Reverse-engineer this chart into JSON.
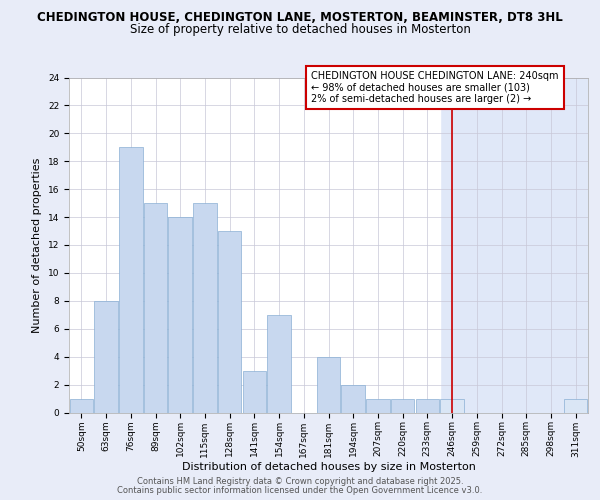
{
  "title_line1": "CHEDINGTON HOUSE, CHEDINGTON LANE, MOSTERTON, BEAMINSTER, DT8 3HL",
  "title_line2": "Size of property relative to detached houses in Mosterton",
  "xlabel": "Distribution of detached houses by size in Mosterton",
  "ylabel": "Number of detached properties",
  "categories": [
    "50sqm",
    "63sqm",
    "76sqm",
    "89sqm",
    "102sqm",
    "115sqm",
    "128sqm",
    "141sqm",
    "154sqm",
    "167sqm",
    "181sqm",
    "194sqm",
    "207sqm",
    "220sqm",
    "233sqm",
    "246sqm",
    "259sqm",
    "272sqm",
    "285sqm",
    "298sqm",
    "311sqm"
  ],
  "values": [
    1,
    8,
    19,
    15,
    14,
    15,
    13,
    3,
    7,
    0,
    4,
    2,
    1,
    1,
    1,
    1,
    0,
    0,
    0,
    0,
    1
  ],
  "bar_color_normal": "#c8d8ef",
  "bar_color_highlight": "#dae6f5",
  "bar_edge_color": "#8aafd4",
  "highlight_from_index": 15,
  "vline_x_index": 15,
  "vline_color": "#cc0000",
  "annotation_text": "CHEDINGTON HOUSE CHEDINGTON LANE: 240sqm\n← 98% of detached houses are smaller (103)\n2% of semi-detached houses are larger (2) →",
  "annotation_box_color": "#ffffff",
  "annotation_box_edge": "#cc0000",
  "ylim": [
    0,
    24
  ],
  "yticks": [
    0,
    2,
    4,
    6,
    8,
    10,
    12,
    14,
    16,
    18,
    20,
    22,
    24
  ],
  "footer_line1": "Contains HM Land Registry data © Crown copyright and database right 2025.",
  "footer_line2": "Contains public sector information licensed under the Open Government Licence v3.0.",
  "bg_color": "#e8ecf8",
  "plot_bg_left_color": "#ffffff",
  "plot_bg_right_color": "#e0e8f8",
  "grid_color": "#c8c8d8",
  "title_fontsize": 8.5,
  "subtitle_fontsize": 8.5,
  "tick_fontsize": 6.5,
  "ylabel_fontsize": 8,
  "xlabel_fontsize": 8,
  "footer_fontsize": 6,
  "annot_fontsize": 7
}
